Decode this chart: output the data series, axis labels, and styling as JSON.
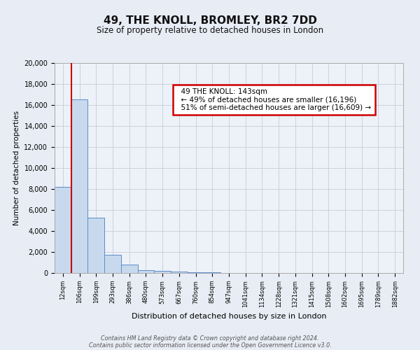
{
  "title": "49, THE KNOLL, BROMLEY, BR2 7DD",
  "subtitle": "Size of property relative to detached houses in London",
  "xlabel": "Distribution of detached houses by size in London",
  "ylabel": "Number of detached properties",
  "bar_labels": [
    "12sqm",
    "106sqm",
    "199sqm",
    "293sqm",
    "386sqm",
    "480sqm",
    "573sqm",
    "667sqm",
    "760sqm",
    "854sqm",
    "947sqm",
    "1041sqm",
    "1134sqm",
    "1228sqm",
    "1321sqm",
    "1415sqm",
    "1508sqm",
    "1602sqm",
    "1695sqm",
    "1789sqm",
    "1882sqm"
  ],
  "bar_values": [
    8200,
    16500,
    5300,
    1750,
    800,
    280,
    200,
    130,
    80,
    50,
    30,
    20,
    15,
    10,
    8,
    5,
    4,
    3,
    2,
    2,
    1
  ],
  "bar_color": "#c8d9ee",
  "bar_edge_color": "#5b8cc8",
  "annotation_title": "49 THE KNOLL: 143sqm",
  "annotation_line1": "← 49% of detached houses are smaller (16,196)",
  "annotation_line2": "51% of semi-detached houses are larger (16,609) →",
  "annotation_box_color": "#ffffff",
  "annotation_box_edge": "#cc0000",
  "ylim": [
    0,
    20000
  ],
  "yticks": [
    0,
    2000,
    4000,
    6000,
    8000,
    10000,
    12000,
    14000,
    16000,
    18000,
    20000
  ],
  "footer_line1": "Contains HM Land Registry data © Crown copyright and database right 2024.",
  "footer_line2": "Contains public sector information licensed under the Open Government Licence v3.0.",
  "grid_color": "#c8cdd8",
  "bg_color": "#e8ecf4",
  "plot_bg_color": "#edf1f8"
}
